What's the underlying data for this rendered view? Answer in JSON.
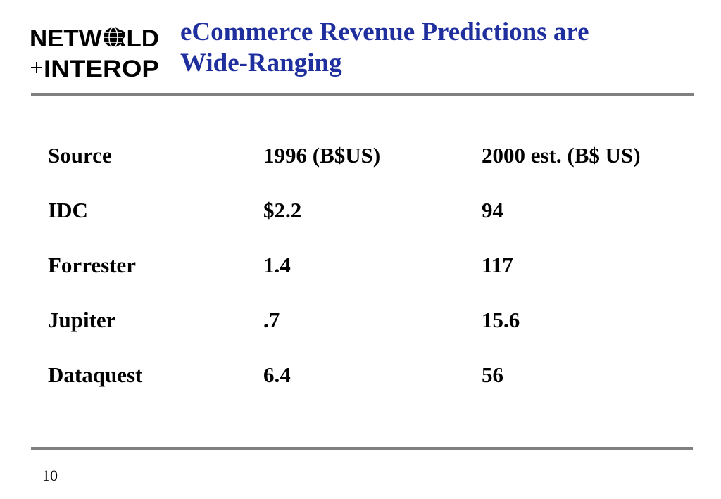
{
  "logo": {
    "line1": "NETWORLD",
    "line2": "+INTEROP"
  },
  "title": {
    "line1": "eCommerce Revenue Predictions are",
    "line2": "Wide-Ranging"
  },
  "colors": {
    "title": "#1f2f9e",
    "rule": "#808080"
  },
  "table": {
    "headers": [
      "Source",
      "1996 (B$US)",
      "2000 est. (B$ US)"
    ],
    "rows": [
      [
        "IDC",
        "$2.2",
        "94"
      ],
      [
        "Forrester",
        "1.4",
        "117"
      ],
      [
        "Jupiter",
        ".7",
        "15.6"
      ],
      [
        "Dataquest",
        "6.4",
        "56"
      ]
    ]
  },
  "page_number": "10"
}
